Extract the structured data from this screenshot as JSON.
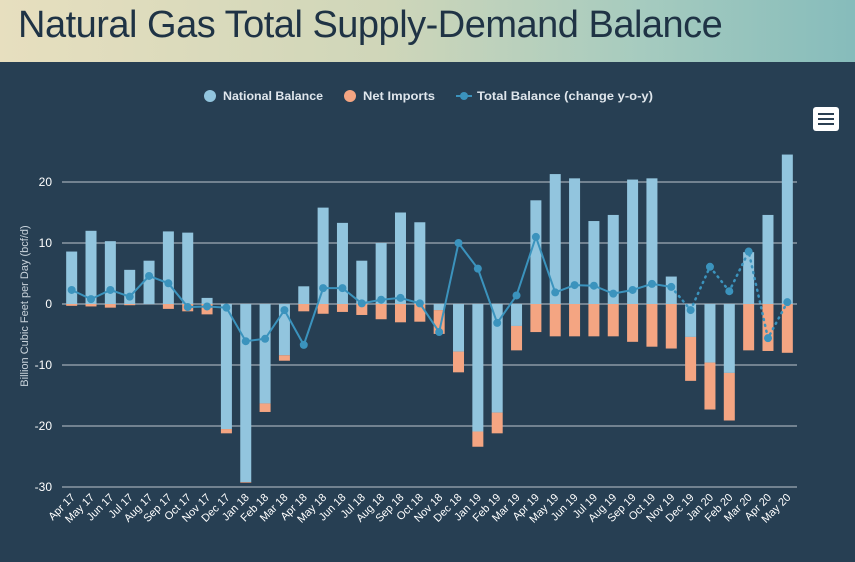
{
  "page": {
    "title": "Natural Gas Total Supply-Demand Balance"
  },
  "menu": {
    "icon": "hamburger-menu-icon"
  },
  "colors": {
    "national": "#92c5de",
    "imports": "#f4a582",
    "total": "#3b93bd",
    "background": "#273f53",
    "grid": "#d9dee3",
    "text": "#ffffff"
  },
  "chart_data": {
    "type": "bar",
    "stacked": true,
    "ylabel": "Billion Cubic Feet per Day (bcf/d)",
    "xlabel": "",
    "ylim": [
      -30,
      25
    ],
    "yticks": [
      -30,
      -20,
      -10,
      0,
      10,
      20
    ],
    "grid": true,
    "legend_position": "top-center",
    "categories": [
      "Apr 17",
      "May 17",
      "Jun 17",
      "Jul 17",
      "Aug 17",
      "Sep 17",
      "Oct 17",
      "Nov 17",
      "Dec 17",
      "Jan 18",
      "Feb 18",
      "Mar 18",
      "Apr 18",
      "May 18",
      "Jun 18",
      "Jul 18",
      "Aug 18",
      "Sep 18",
      "Oct 18",
      "Nov 18",
      "Dec 18",
      "Jan 19",
      "Feb 19",
      "Mar 19",
      "Apr 19",
      "May 19",
      "Jun 19",
      "Jul 19",
      "Aug 19",
      "Sep 19",
      "Oct 19",
      "Nov 19",
      "Dec 19",
      "Jan 20",
      "Feb 20",
      "Mar 20",
      "Apr 20",
      "May 20"
    ],
    "series": [
      {
        "name": "National Balance",
        "kind": "bar",
        "values": [
          8.6,
          12.0,
          10.3,
          5.6,
          7.1,
          11.9,
          11.7,
          1.0,
          -20.5,
          -29.2,
          -16.3,
          -8.4,
          2.9,
          15.8,
          13.3,
          7.1,
          10.0,
          15.0,
          13.4,
          -1.0,
          -7.8,
          -20.9,
          -17.8,
          -3.6,
          17.0,
          21.3,
          20.6,
          13.6,
          14.6,
          20.4,
          20.6,
          4.5,
          -5.4,
          -9.6,
          -11.3,
          8.5,
          14.6,
          24.5
        ]
      },
      {
        "name": "Net Imports",
        "kind": "bar",
        "values": [
          -0.3,
          -0.4,
          -0.6,
          -0.2,
          0.0,
          -0.8,
          -1.2,
          -1.7,
          -0.7,
          -0.1,
          -1.4,
          -0.9,
          -1.2,
          -1.6,
          -1.3,
          -1.8,
          -2.5,
          -3.0,
          -2.9,
          -3.9,
          -3.4,
          -2.5,
          -3.4,
          -4.0,
          -4.6,
          -5.3,
          -5.3,
          -5.3,
          -5.3,
          -6.2,
          -7.0,
          -7.3,
          -7.2,
          -7.7,
          -7.8,
          -7.6,
          -7.7,
          -8.0
        ]
      },
      {
        "name": "Total Balance (change y-o-y)",
        "kind": "line",
        "values": [
          2.3,
          0.8,
          2.3,
          1.2,
          4.6,
          3.4,
          -0.5,
          -0.4,
          -0.6,
          -6.1,
          -5.7,
          -1.0,
          -6.7,
          2.6,
          2.6,
          0.1,
          0.7,
          1.0,
          0.1,
          -4.6,
          10.0,
          5.8,
          -3.1,
          1.4,
          11.0,
          1.9,
          3.1,
          3.0,
          1.7,
          2.3,
          3.3,
          2.8,
          -1.0,
          6.1,
          2.1,
          8.6,
          -5.6,
          0.3
        ]
      }
    ]
  }
}
